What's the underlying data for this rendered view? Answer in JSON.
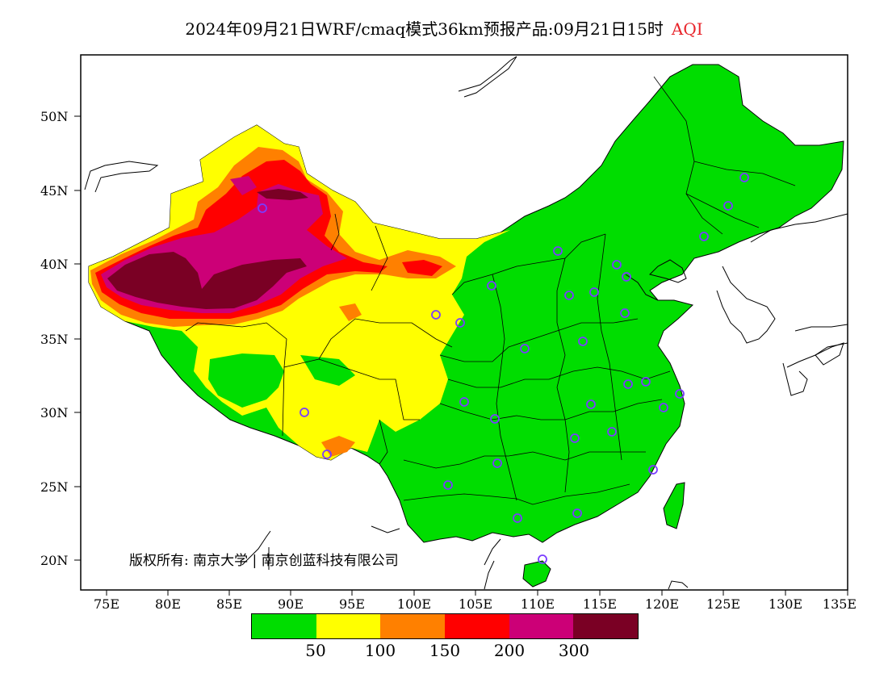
{
  "title": {
    "main": "2024年09月21日WRF/cmaq模式36km预报产品:09月21日15时",
    "variable": "AQI"
  },
  "axes": {
    "lat_labels": [
      "50N",
      "45N",
      "40N",
      "35N",
      "30N",
      "25N",
      "20N"
    ],
    "lon_labels": [
      "75E",
      "80E",
      "85E",
      "90E",
      "95E",
      "100E",
      "105E",
      "110E",
      "115E",
      "120E",
      "125E",
      "130E",
      "135E"
    ]
  },
  "legend": {
    "colors": [
      "#00dd00",
      "#ffff00",
      "#ff8000",
      "#ff0000",
      "#cc0077",
      "#7a0024"
    ],
    "labels": [
      "50",
      "100",
      "150",
      "200",
      "300"
    ]
  },
  "copyright": "版权所有: 南京大学 | 南京创蓝科技有限公司",
  "colors": {
    "good": "#00dd00",
    "moderate": "#ffff00",
    "usg": "#ff8000",
    "unhealthy": "#ff0000",
    "very_unhealthy": "#cc0077",
    "hazardous": "#7a0024",
    "station": "#7a3cff"
  }
}
